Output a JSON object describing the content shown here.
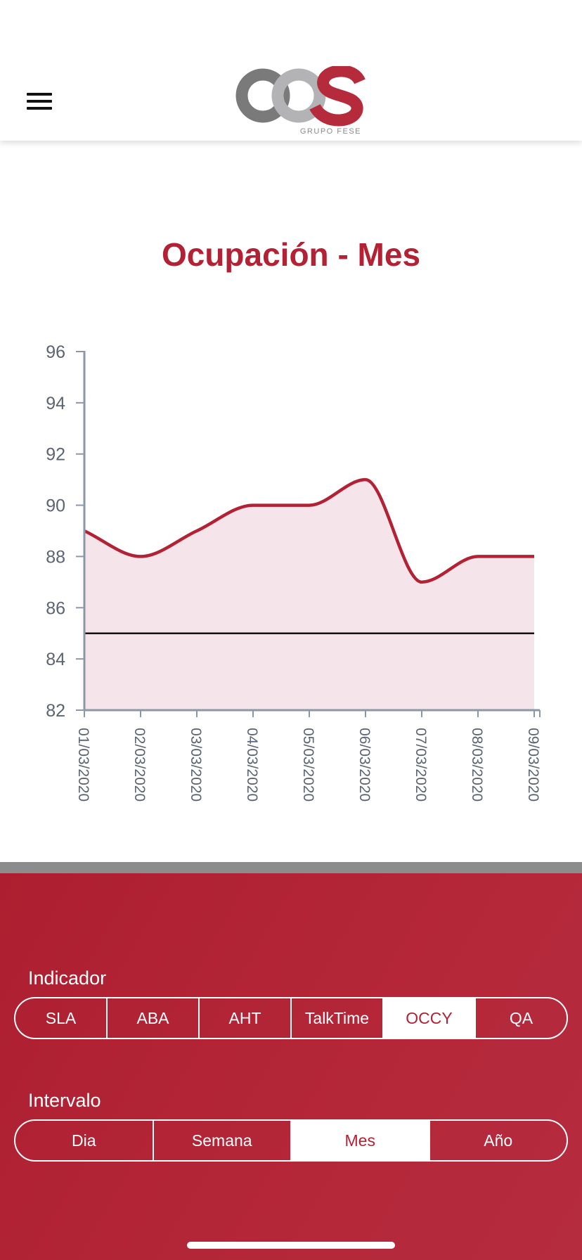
{
  "header": {
    "logo_text": "OCS",
    "logo_subtitle": "GRUPO FESE",
    "icons": {
      "menu": "hamburger-menu-icon"
    }
  },
  "chart_title": "Ocupación - Mes",
  "chart_data": {
    "type": "area",
    "title": "Ocupación - Mes",
    "categories": [
      "01/03/2020",
      "02/03/2020",
      "03/03/2020",
      "04/03/2020",
      "05/03/2020",
      "06/03/2020",
      "07/03/2020",
      "08/03/2020",
      "09/03/2020"
    ],
    "values": [
      89,
      88,
      89,
      90,
      90,
      91,
      87,
      88,
      88
    ],
    "target": 85,
    "yticks": [
      82,
      84,
      86,
      88,
      90,
      92,
      94,
      96
    ],
    "ylim": [
      82,
      96
    ],
    "xlabel": "",
    "ylabel": "",
    "grid": false,
    "colors": {
      "line": "#b22234",
      "fill": "#f5e5ea",
      "target": "#111111",
      "axis": "#8c98a8",
      "tick_text": "#5a6472"
    }
  },
  "indicador": {
    "label": "Indicador",
    "options": [
      "SLA",
      "ABA",
      "AHT",
      "TalkTime",
      "OCCY",
      "QA"
    ],
    "selected": "OCCY"
  },
  "intervalo": {
    "label": "Intervalo",
    "options": [
      "Dia",
      "Semana",
      "Mes",
      "Año"
    ],
    "selected": "Mes"
  },
  "theme": {
    "accent": "#b22234",
    "panel_bg": "#b02536",
    "divider": "#8c8c8c"
  }
}
